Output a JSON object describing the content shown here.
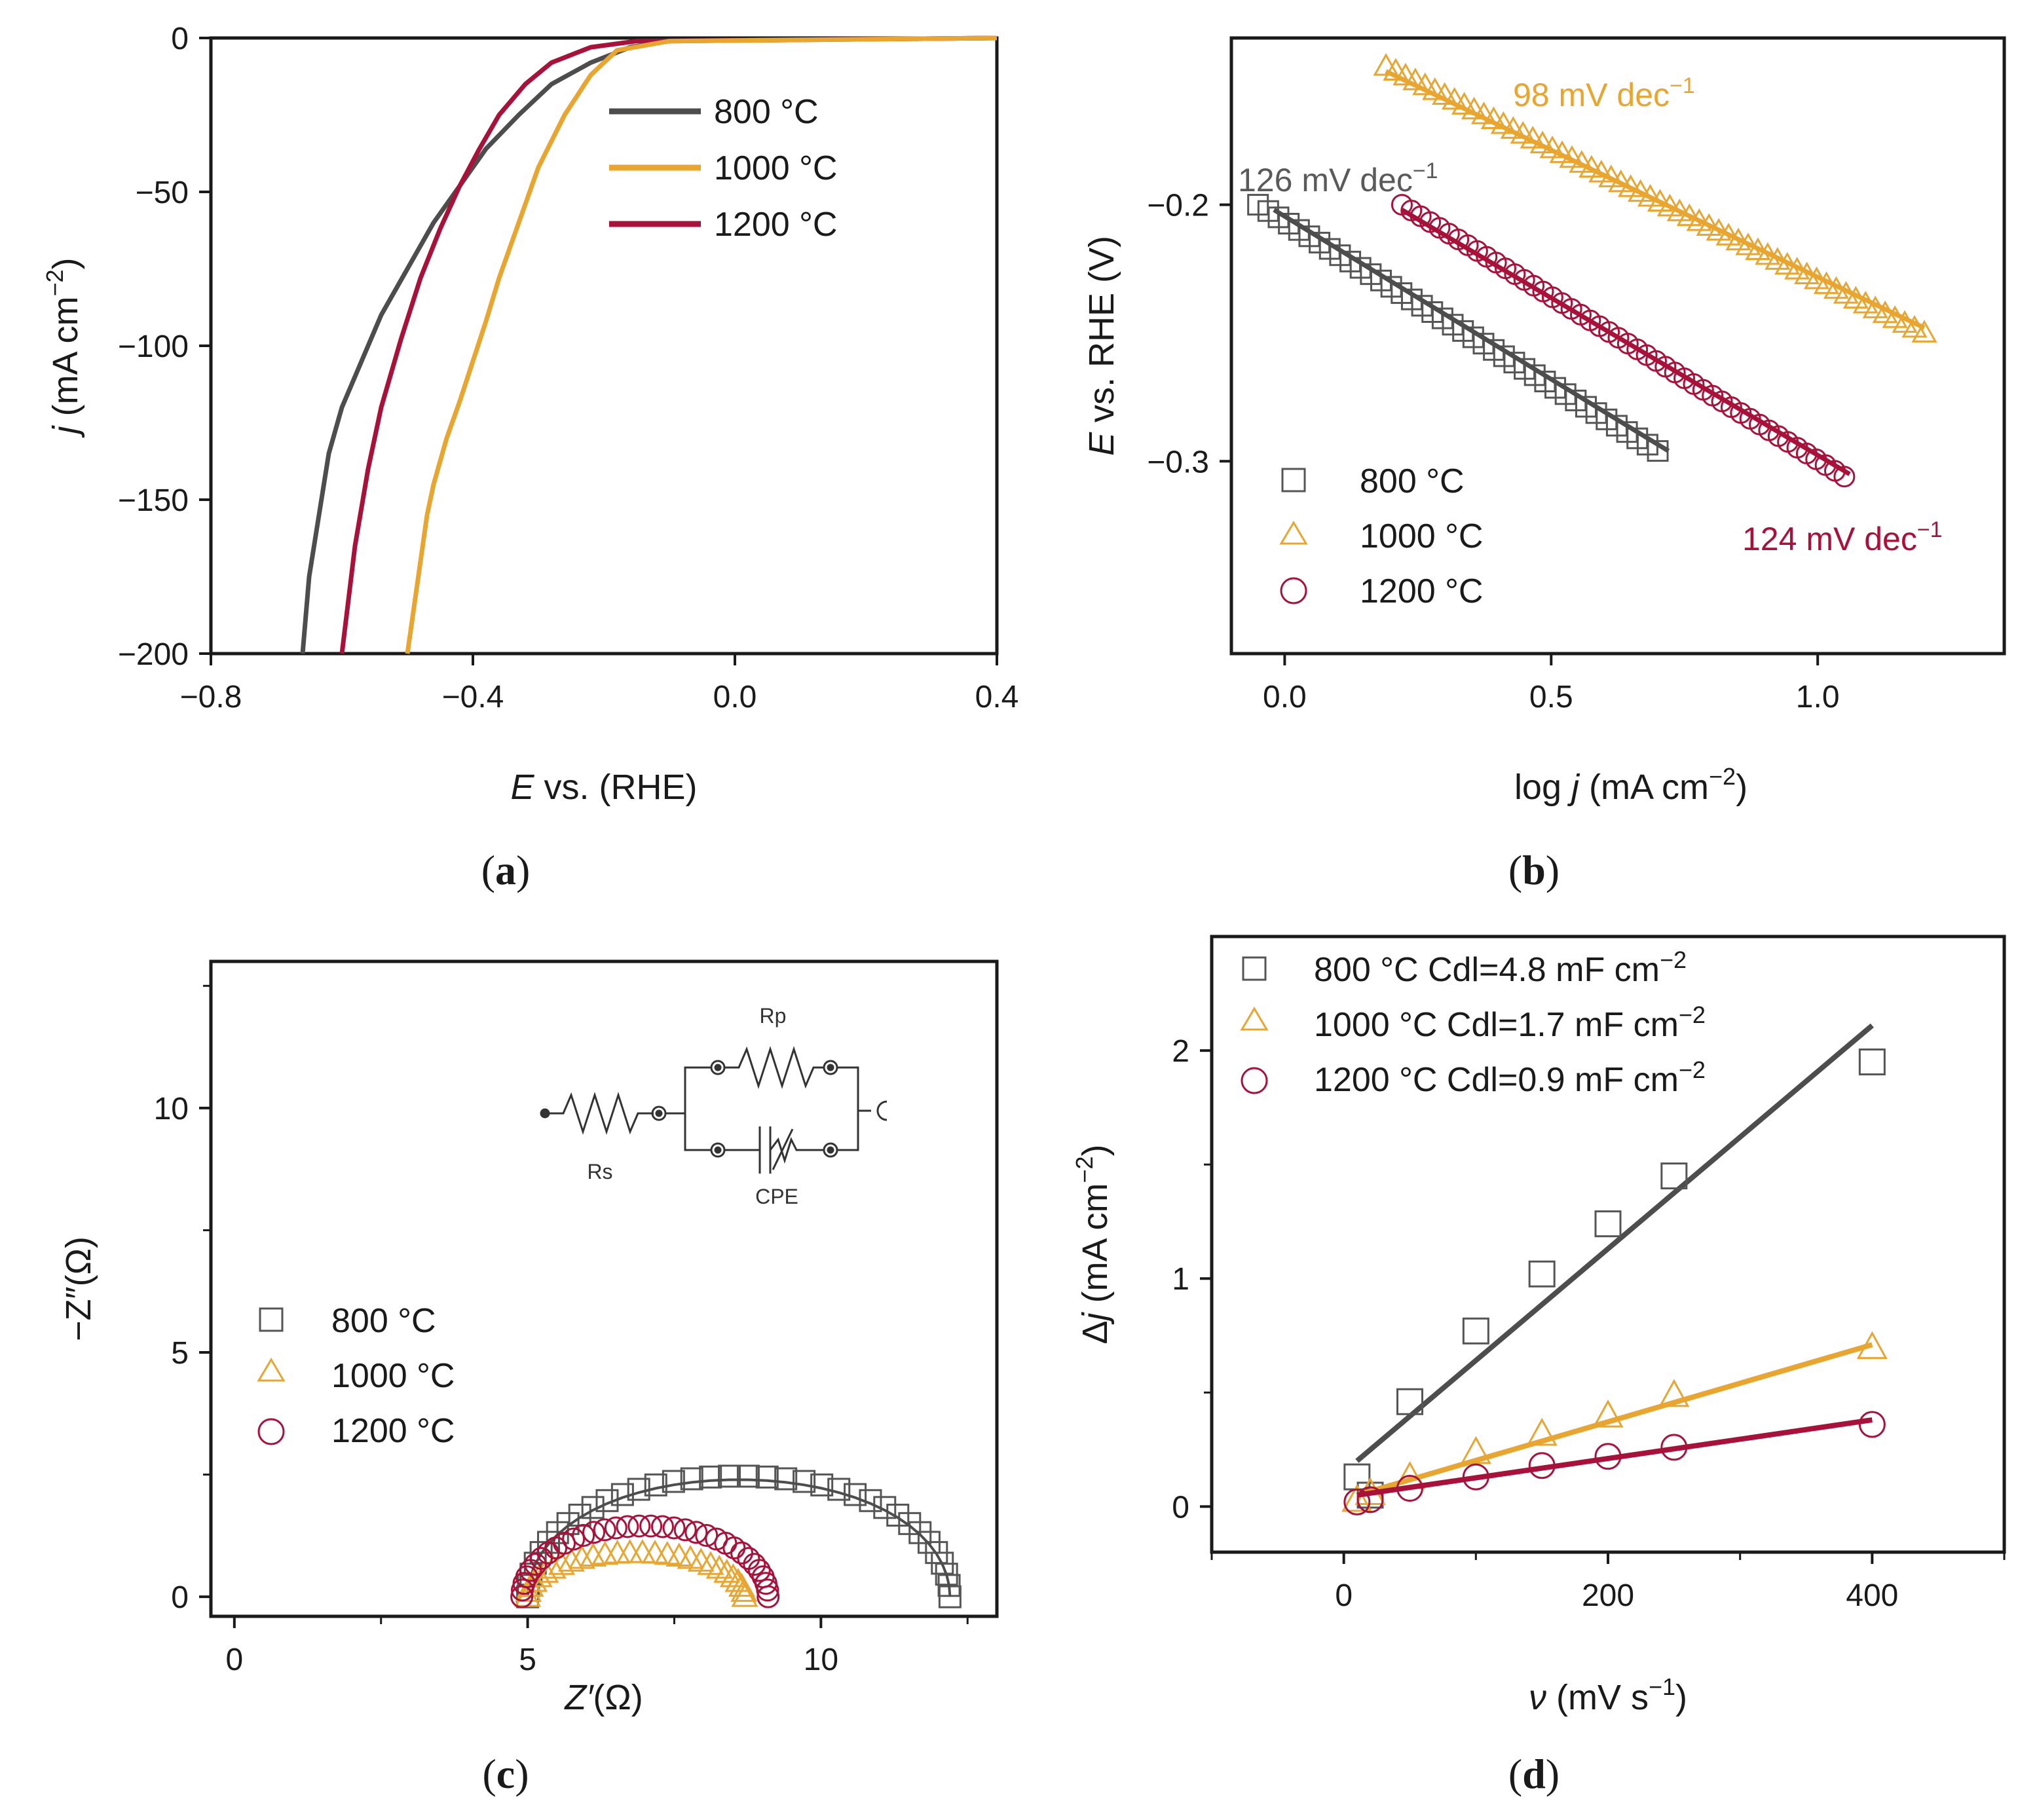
{
  "figure": {
    "colors": {
      "s800": "#4d4d4d",
      "s1000": "#e8a530",
      "s1200": "#a8123a",
      "axis": "#1a1a1a"
    }
  },
  "chart_data": [
    {
      "panel": "a",
      "caption": "(a)",
      "type": "line",
      "xlabel_var": "E",
      "xlabel_rest": " vs. (RHE)",
      "ylabel_var": "j",
      "ylabel_rest": " (mA cm",
      "ylabel_sup": "−2",
      "ylabel_end": ")",
      "xlim": [
        -0.8,
        0.4
      ],
      "ylim": [
        -200,
        0
      ],
      "xticks": [
        "−0.8",
        "−0.4",
        "0.0",
        "0.4"
      ],
      "xtick_values": [
        -0.8,
        -0.4,
        0.0,
        0.4
      ],
      "yticks": [
        "0",
        "−50",
        "−100",
        "−150",
        "−200"
      ],
      "ytick_values": [
        0,
        -50,
        -100,
        -150,
        -200
      ],
      "legend": [
        "800 °C",
        "1000 °C",
        "1200 °C"
      ],
      "series": [
        {
          "name": "800 °C",
          "x": [
            0.4,
            -0.1,
            -0.16,
            -0.22,
            -0.28,
            -0.33,
            -0.38,
            -0.42,
            -0.46,
            -0.5,
            -0.54,
            -0.57,
            -0.6,
            -0.62,
            -0.635,
            -0.65,
            -0.66
          ],
          "y": [
            0,
            -1,
            -3,
            -8,
            -15,
            -25,
            -36,
            -48,
            -60,
            -75,
            -90,
            -105,
            -120,
            -135,
            -155,
            -175,
            -200
          ]
        },
        {
          "name": "1000 °C",
          "x": [
            0.4,
            -0.1,
            -0.18,
            -0.22,
            -0.26,
            -0.3,
            -0.33,
            -0.36,
            -0.38,
            -0.4,
            -0.42,
            -0.44,
            -0.46,
            -0.47,
            -0.48,
            -0.49,
            -0.5
          ],
          "y": [
            0,
            -1,
            -4,
            -12,
            -25,
            -42,
            -60,
            -78,
            -92,
            -105,
            -118,
            -130,
            -145,
            -155,
            -170,
            -185,
            -200
          ]
        },
        {
          "name": "1200 °C",
          "x": [
            0.4,
            -0.15,
            -0.22,
            -0.28,
            -0.32,
            -0.36,
            -0.39,
            -0.42,
            -0.45,
            -0.48,
            -0.51,
            -0.54,
            -0.56,
            -0.58,
            -0.6
          ],
          "y": [
            0,
            -1,
            -3,
            -8,
            -15,
            -25,
            -36,
            -48,
            -62,
            -78,
            -98,
            -120,
            -140,
            -165,
            -200
          ]
        }
      ]
    },
    {
      "panel": "b",
      "caption": "(b)",
      "type": "scatter",
      "xlabel_pre": "log ",
      "xlabel_var": "j",
      "xlabel_rest": " (mA cm",
      "xlabel_sup": "−2",
      "xlabel_end": ")",
      "ylabel_var": "E",
      "ylabel_rest": " vs. RHE (V)",
      "xlim": [
        -0.1,
        1.35
      ],
      "ylim": [
        -0.375,
        -0.135
      ],
      "xticks": [
        "0.0",
        "0.5",
        "1.0"
      ],
      "xtick_values": [
        0.0,
        0.5,
        1.0
      ],
      "yticks": [
        "−0.2",
        "−0.3"
      ],
      "ytick_values": [
        -0.2,
        -0.3
      ],
      "legend": [
        "800 °C",
        "1000 °C",
        "1200 °C"
      ],
      "annotations": [
        {
          "text": "126 mV dec",
          "sup": "−1",
          "series": "800 °C"
        },
        {
          "text": "98 mV dec",
          "sup": "−1",
          "series": "1000 °C"
        },
        {
          "text": "124 mV dec",
          "sup": "−1",
          "series": "1200 °C"
        }
      ],
      "series": [
        {
          "name": "800 °C",
          "marker": "square",
          "x_start": -0.05,
          "x_end": 0.7,
          "y_start": -0.2,
          "y_end": -0.296,
          "n_points": 40,
          "fit_x": [
            -0.02,
            0.72
          ],
          "fit_y": [
            -0.202,
            -0.296
          ]
        },
        {
          "name": "1000 °C",
          "marker": "triangle",
          "x_start": 0.19,
          "x_end": 1.2,
          "y_start": -0.146,
          "y_end": -0.25,
          "n_points": 56,
          "fit_x": [
            0.19,
            1.2
          ],
          "fit_y": [
            -0.148,
            -0.248
          ]
        },
        {
          "name": "1200 °C",
          "marker": "circle",
          "x_start": 0.22,
          "x_end": 1.05,
          "y_start": -0.2,
          "y_end": -0.306,
          "n_points": 48,
          "fit_x": [
            0.22,
            1.06
          ],
          "fit_y": [
            -0.202,
            -0.305
          ]
        }
      ]
    },
    {
      "panel": "c",
      "caption": "(c)",
      "type": "scatter",
      "xlabel_var": "Z′",
      "xlabel_rest": "(Ω)",
      "ylabel": "−Z″(Ω)",
      "xlim": [
        -0.4,
        13
      ],
      "ylim": [
        -0.4,
        13
      ],
      "xticks": [
        "0",
        "5",
        "10"
      ],
      "xtick_values": [
        0,
        5,
        10
      ],
      "yticks": [
        "0",
        "5",
        "10"
      ],
      "ytick_values": [
        0,
        5,
        10
      ],
      "minor_xtick_values": [
        2.5,
        7.5,
        12.5
      ],
      "minor_ytick_values": [
        2.5,
        7.5,
        12.5
      ],
      "legend": [
        "800 °C",
        "1000 °C",
        "1200 °C"
      ],
      "inset": {
        "rs": "Rs",
        "rp": "Rp",
        "cpe": "CPE"
      },
      "series": [
        {
          "name": "800 °C",
          "marker": "square",
          "shape": "arc",
          "rs": 5.0,
          "rp": 7.2,
          "peak": 2.5,
          "n_points": 36
        },
        {
          "name": "1000 °C",
          "marker": "triangle",
          "shape": "arc",
          "rs": 5.0,
          "rp": 3.7,
          "peak": 0.9,
          "n_points": 28
        },
        {
          "name": "1200 °C",
          "marker": "circle",
          "shape": "arc",
          "rs": 4.9,
          "rp": 4.2,
          "peak": 1.45,
          "n_points": 34
        }
      ]
    },
    {
      "panel": "d",
      "caption": "(d)",
      "type": "scatter",
      "xlabel_var": "ν",
      "xlabel_rest": " (mV s",
      "xlabel_sup": "−1",
      "xlabel_end": ")",
      "ylabel_pre": "Δ",
      "ylabel_var": "j",
      "ylabel_rest": " (mA  cm",
      "ylabel_sup": "−2",
      "ylabel_end": ")",
      "xlim": [
        -100,
        500
      ],
      "ylim": [
        -0.2,
        2.5
      ],
      "xticks": [
        "0",
        "200",
        "400"
      ],
      "xtick_values": [
        0,
        200,
        400
      ],
      "yticks": [
        "0",
        "1",
        "2"
      ],
      "ytick_values": [
        0,
        1,
        2
      ],
      "minor_xtick_values": [
        -100,
        100,
        300,
        500
      ],
      "minor_ytick_values": [
        0.5,
        1.5
      ],
      "legend": [
        "800 °C  Cdl=4.8 mF cm",
        "1000 °C Cdl=1.7 mF cm",
        "1200 °C Cdl=0.9 mF cm"
      ],
      "legend_sup": "−2",
      "series": [
        {
          "name": "800 °C",
          "marker": "square",
          "x": [
            10,
            20,
            50,
            100,
            150,
            200,
            250,
            400
          ],
          "y": [
            0.13,
            0.05,
            0.46,
            0.77,
            1.02,
            1.24,
            1.45,
            1.95
          ],
          "fit_x": [
            10,
            400
          ],
          "fit_y": [
            0.2,
            2.11
          ]
        },
        {
          "name": "1000 °C",
          "marker": "triangle",
          "x": [
            10,
            20,
            50,
            100,
            150,
            200,
            250,
            400
          ],
          "y": [
            0.03,
            0.06,
            0.13,
            0.24,
            0.32,
            0.4,
            0.49,
            0.7
          ],
          "fit_x": [
            10,
            400
          ],
          "fit_y": [
            0.05,
            0.71
          ]
        },
        {
          "name": "1200 °C",
          "marker": "circle",
          "x": [
            10,
            20,
            50,
            100,
            150,
            200,
            250,
            400
          ],
          "y": [
            0.02,
            0.03,
            0.08,
            0.13,
            0.18,
            0.22,
            0.26,
            0.36
          ],
          "fit_x": [
            10,
            400
          ],
          "fit_y": [
            0.05,
            0.38
          ]
        }
      ]
    }
  ]
}
